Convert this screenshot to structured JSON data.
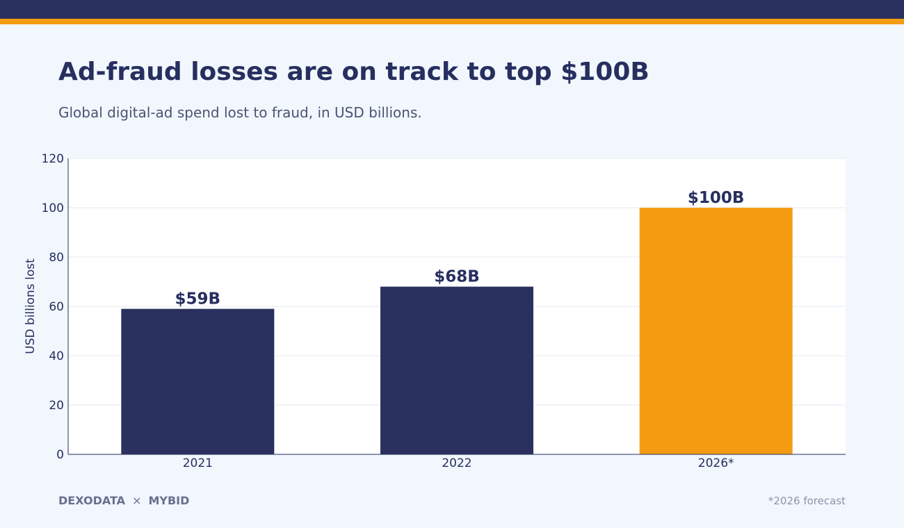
{
  "header": {
    "title": "Ad-fraud losses are on track to top $100B",
    "subtitle": "Global digital-ad spend lost to fraud, in USD billions."
  },
  "colors": {
    "topbar": "#2a315e",
    "accent": "#f39c12",
    "bar_primary": "#2a315e",
    "bar_highlight": "#f39c12",
    "background": "#f1f7fd",
    "plot_background": "#ffffff"
  },
  "chart_data": {
    "type": "bar",
    "categories": [
      "2021",
      "2022",
      "2026*"
    ],
    "values": [
      59,
      68,
      100
    ],
    "data_labels": [
      "$59B",
      "$68B",
      "$100B"
    ],
    "highlight_index": 2,
    "title": "Ad-fraud losses are on track to top $100B",
    "subtitle": "Global digital-ad spend lost to fraud, in USD billions.",
    "xlabel": "",
    "ylabel": "USD billions lost",
    "ylim": [
      0,
      120
    ],
    "yticks": [
      0,
      20,
      40,
      60,
      80,
      100,
      120
    ],
    "grid": true,
    "legend": "none"
  },
  "footer": {
    "brand_left": "DEXODATA",
    "brand_separator": "×",
    "brand_right": "MYBID",
    "footnote": "*2026 forecast"
  }
}
